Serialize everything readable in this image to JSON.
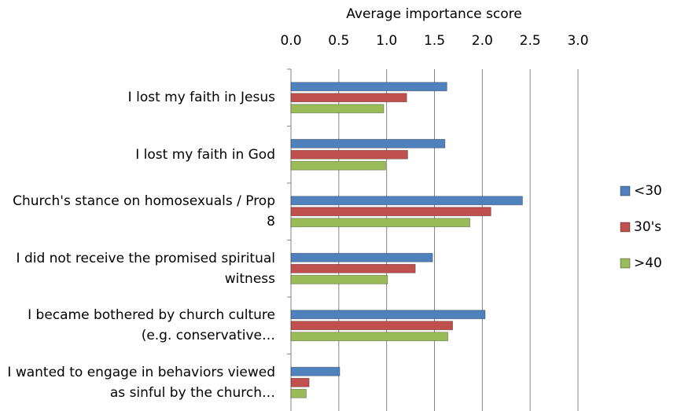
{
  "chart_data": {
    "type": "bar",
    "orientation": "horizontal",
    "title": "Average importance score",
    "categories": [
      "I lost my faith in Jesus",
      "I lost my faith in God",
      "Church's stance on homosexuals / Prop 8",
      "I did not receive the promised spiritual witness",
      "I became bothered by church culture (e.g. conservative…",
      "I wanted to engage in behaviors viewed as sinful by the church…"
    ],
    "series": [
      {
        "name": "<30",
        "color": "#4f81bd",
        "values": [
          1.63,
          1.61,
          2.42,
          1.48,
          2.03,
          0.51
        ]
      },
      {
        "name": "30's",
        "color": "#c0504d",
        "values": [
          1.21,
          1.22,
          2.09,
          1.3,
          1.69,
          0.19
        ]
      },
      {
        "name": ">40",
        "color": "#9bbb59",
        "values": [
          0.97,
          0.99,
          1.87,
          1.01,
          1.64,
          0.16
        ]
      }
    ],
    "xlim": [
      0,
      3
    ],
    "xticks": [
      {
        "value": 0,
        "label": "0.0"
      },
      0.5,
      {
        "value": 1,
        "label": "1.0"
      },
      1.5,
      {
        "value": 2,
        "label": "2.0"
      },
      2.5,
      {
        "value": 3,
        "label": "3.0"
      }
    ],
    "grid": true,
    "legend": "right"
  }
}
